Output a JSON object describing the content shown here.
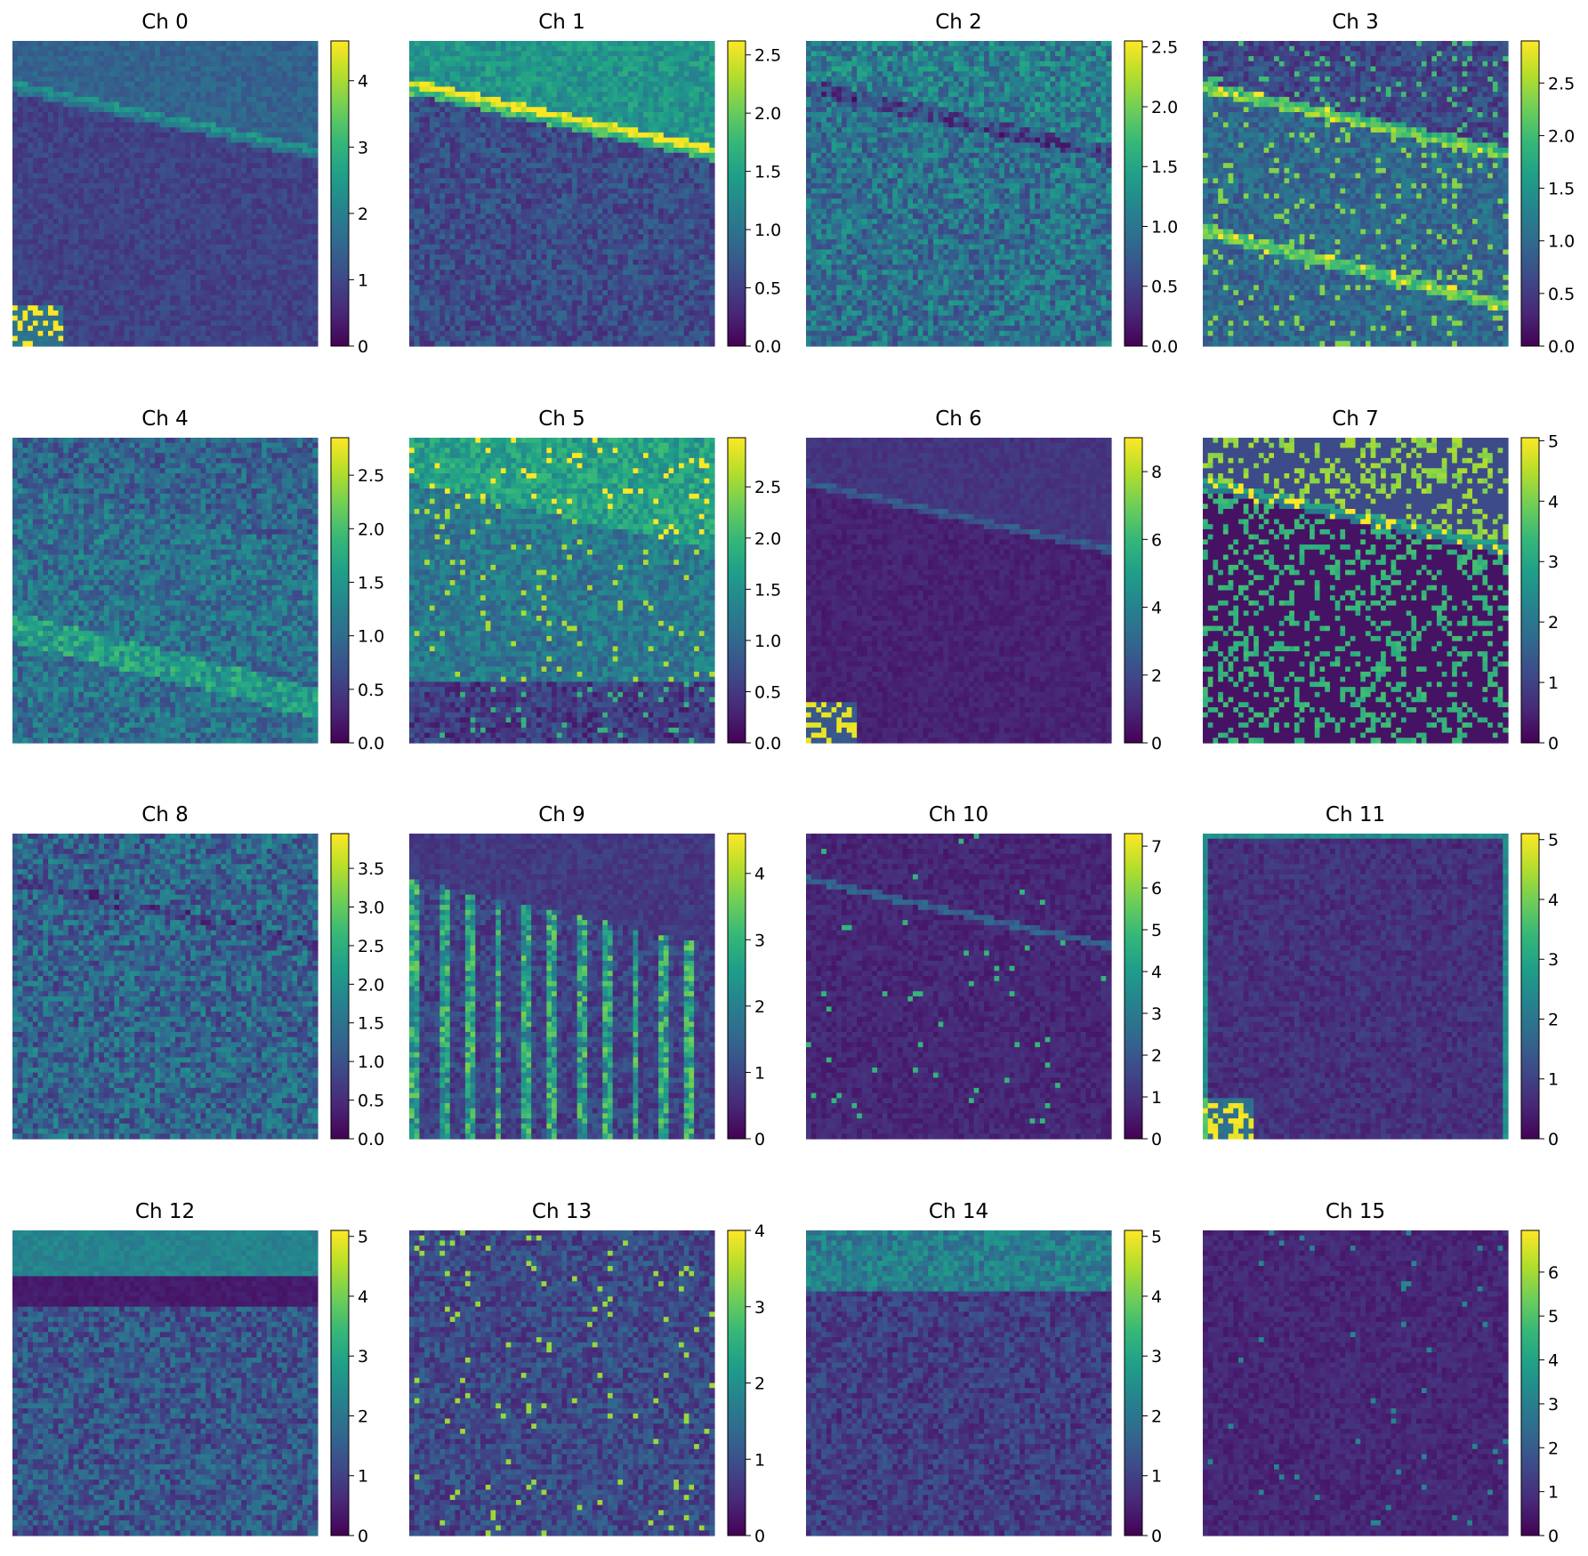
{
  "figure": {
    "layout": "4x4 grid of heatmaps with colorbars",
    "colormap": "viridis",
    "colormap_stops": [
      "#440154",
      "#482878",
      "#3e4989",
      "#31688e",
      "#26828e",
      "#1f9e89",
      "#35b779",
      "#6ece58",
      "#b5de2b",
      "#fde725"
    ],
    "axes_visible": false
  },
  "chart_data": [
    {
      "type": "heatmap",
      "title": "Ch 0",
      "colorbar": {
        "ticks": [
          "0",
          "1",
          "2",
          "3",
          "4"
        ],
        "values": [
          0,
          1,
          2,
          3,
          4
        ],
        "range": [
          0,
          4.6
        ]
      },
      "texture": "faint diagonal band near top edge, dark interior, bright patch lower-left"
    },
    {
      "type": "heatmap",
      "title": "Ch 1",
      "colorbar": {
        "ticks": [
          "0.0",
          "0.5",
          "1.0",
          "1.5",
          "2.0",
          "2.5"
        ],
        "values": [
          0.0,
          0.5,
          1.0,
          1.5,
          2.0,
          2.5
        ],
        "range": [
          0,
          2.62
        ]
      },
      "texture": "bright top region with strong yellow diagonal edge"
    },
    {
      "type": "heatmap",
      "title": "Ch 2",
      "colorbar": {
        "ticks": [
          "0.0",
          "0.5",
          "1.0",
          "1.5",
          "2.0",
          "2.5"
        ],
        "values": [
          0.0,
          0.5,
          1.0,
          1.5,
          2.0,
          2.5
        ],
        "range": [
          0,
          2.55
        ]
      },
      "texture": "mottled teal texture with dark diagonal band"
    },
    {
      "type": "heatmap",
      "title": "Ch 3",
      "colorbar": {
        "ticks": [
          "0.0",
          "0.5",
          "1.0",
          "1.5",
          "2.0",
          "2.5"
        ],
        "values": [
          0.0,
          0.5,
          1.0,
          1.5,
          2.0,
          2.5
        ],
        "range": [
          0,
          2.9
        ]
      },
      "texture": "bright green streaks along diagonal bands"
    },
    {
      "type": "heatmap",
      "title": "Ch 4",
      "colorbar": {
        "ticks": [
          "0.0",
          "0.5",
          "1.0",
          "1.5",
          "2.0",
          "2.5"
        ],
        "values": [
          0.0,
          0.5,
          1.0,
          1.5,
          2.0,
          2.5
        ],
        "range": [
          0,
          2.85
        ]
      },
      "texture": "teal mottled with diagonal bands"
    },
    {
      "type": "heatmap",
      "title": "Ch 5",
      "colorbar": {
        "ticks": [
          "0.0",
          "0.5",
          "1.0",
          "1.5",
          "2.0",
          "2.5"
        ],
        "values": [
          0.0,
          0.5,
          1.0,
          1.5,
          2.0,
          2.5
        ],
        "range": [
          0,
          2.98
        ]
      },
      "texture": "bright top, speckled green mid band"
    },
    {
      "type": "heatmap",
      "title": "Ch 6",
      "colorbar": {
        "ticks": [
          "0",
          "2",
          "4",
          "6",
          "8"
        ],
        "values": [
          0,
          2,
          4,
          6,
          8
        ],
        "range": [
          0,
          9.0
        ]
      },
      "texture": "mostly dark with thin diagonal line, bright patch lower-left"
    },
    {
      "type": "heatmap",
      "title": "Ch 7",
      "colorbar": {
        "ticks": [
          "0",
          "1",
          "2",
          "3",
          "4",
          "5"
        ],
        "values": [
          0,
          1,
          2,
          3,
          4,
          5
        ],
        "range": [
          0,
          5.05
        ]
      },
      "texture": "dark with green vein-like streaks"
    },
    {
      "type": "heatmap",
      "title": "Ch 8",
      "colorbar": {
        "ticks": [
          "0.0",
          "0.5",
          "1.0",
          "1.5",
          "2.0",
          "2.5",
          "3.0",
          "3.5"
        ],
        "values": [
          0.0,
          0.5,
          1.0,
          1.5,
          2.0,
          2.5,
          3.0,
          3.5
        ],
        "range": [
          0,
          3.95
        ]
      },
      "texture": "teal web-like pattern"
    },
    {
      "type": "heatmap",
      "title": "Ch 9",
      "colorbar": {
        "ticks": [
          "0",
          "1",
          "2",
          "3",
          "4"
        ],
        "values": [
          0,
          1,
          2,
          3,
          4
        ],
        "range": [
          0,
          4.6
        ]
      },
      "texture": "vertical bright streaks in middle band"
    },
    {
      "type": "heatmap",
      "title": "Ch 10",
      "colorbar": {
        "ticks": [
          "0",
          "1",
          "2",
          "3",
          "4",
          "5",
          "6",
          "7"
        ],
        "values": [
          0,
          1,
          2,
          3,
          4,
          5,
          6,
          7
        ],
        "range": [
          0,
          7.3
        ]
      },
      "texture": "dark with faint diagonal line"
    },
    {
      "type": "heatmap",
      "title": "Ch 11",
      "colorbar": {
        "ticks": [
          "0",
          "1",
          "2",
          "3",
          "4",
          "5"
        ],
        "values": [
          0,
          1,
          2,
          3,
          4,
          5
        ],
        "range": [
          0,
          5.1
        ]
      },
      "texture": "dark, teal border, bright patch lower-left"
    },
    {
      "type": "heatmap",
      "title": "Ch 12",
      "colorbar": {
        "ticks": [
          "0",
          "1",
          "2",
          "3",
          "4",
          "5"
        ],
        "values": [
          0,
          1,
          2,
          3,
          4,
          5
        ],
        "range": [
          0,
          5.1
        ]
      },
      "texture": "teal top band, dark band, textured lower"
    },
    {
      "type": "heatmap",
      "title": "Ch 13",
      "colorbar": {
        "ticks": [
          "0",
          "1",
          "2",
          "3",
          "4"
        ],
        "values": [
          0,
          1,
          2,
          3,
          4
        ],
        "range": [
          0,
          4.0
        ]
      },
      "texture": "speckled dark with fine texture"
    },
    {
      "type": "heatmap",
      "title": "Ch 14",
      "colorbar": {
        "ticks": [
          "0",
          "1",
          "2",
          "3",
          "4",
          "5"
        ],
        "values": [
          0,
          1,
          2,
          3,
          4,
          5
        ],
        "range": [
          0,
          5.1
        ]
      },
      "texture": "teal horizontal stripes top, dark lower"
    },
    {
      "type": "heatmap",
      "title": "Ch 15",
      "colorbar": {
        "ticks": [
          "0",
          "1",
          "2",
          "3",
          "4",
          "5",
          "6"
        ],
        "values": [
          0,
          1,
          2,
          3,
          4,
          5,
          6
        ],
        "range": [
          0,
          6.95
        ]
      },
      "texture": "uniformly dark purple with faint texture"
    }
  ]
}
